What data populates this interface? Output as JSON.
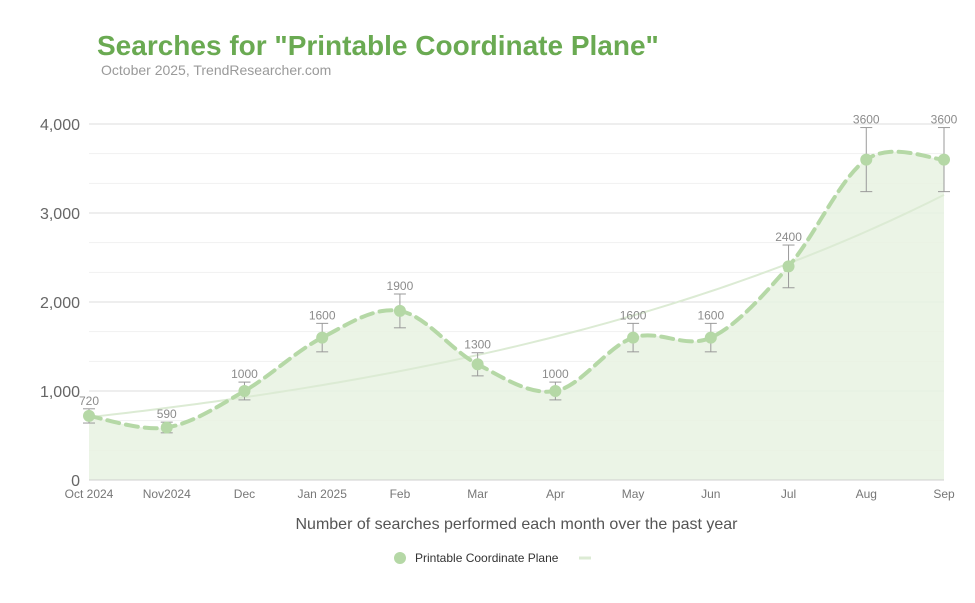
{
  "chart_data": {
    "type": "line",
    "title": "Searches for \"Printable Coordinate Plane\"",
    "subtitle": "October 2025, TrendResearcher.com",
    "xlabel": "Number of searches performed each month over the past year",
    "ylabel": "",
    "ylim": [
      0,
      4000
    ],
    "yticks": [
      0,
      1000,
      2000,
      3000,
      4000
    ],
    "ytick_labels": [
      "0",
      "1,000",
      "2,000",
      "3,000",
      "4,000"
    ],
    "categories": [
      "Oct 2024",
      "Nov2024",
      "Dec",
      "Jan 2025",
      "Feb",
      "Mar",
      "Apr",
      "May",
      "Jun",
      "Jul",
      "Aug",
      "Sep"
    ],
    "series": [
      {
        "name": "Printable Coordinate Plane",
        "values": [
          720,
          590,
          1000,
          1600,
          1900,
          1300,
          1000,
          1600,
          1600,
          2400,
          3600,
          3600
        ],
        "error_low": [
          640,
          530,
          900,
          1440,
          1710,
          1170,
          900,
          1440,
          1440,
          2160,
          3240,
          3240
        ],
        "error_high": [
          800,
          650,
          1100,
          1760,
          2090,
          1430,
          1100,
          1760,
          1760,
          2640,
          3960,
          3960
        ],
        "data_labels": [
          "720",
          "590",
          "1000",
          "1600",
          "1900",
          "1300",
          "1000",
          "1600",
          "1600",
          "2400",
          "3600",
          "3600"
        ],
        "color": "#b5d8a6"
      }
    ],
    "trendline": {
      "type": "exponential",
      "color": "#dcebd4"
    },
    "grid": true,
    "legend": "bottom"
  }
}
